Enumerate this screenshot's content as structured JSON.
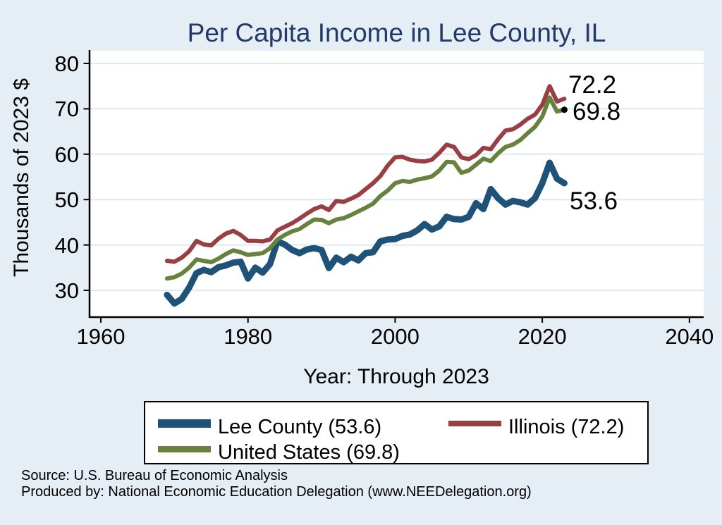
{
  "title": "Per Capita Income in Lee County, IL",
  "axes": {
    "y": {
      "label": "Thousands of 2023 $",
      "ticks": [
        "80",
        "70",
        "60",
        "50",
        "40",
        "30"
      ]
    },
    "x": {
      "label": "Year: Through 2023",
      "ticks": [
        "1960",
        "1980",
        "2000",
        "2020",
        "2040"
      ]
    }
  },
  "end_labels": {
    "illinois": "72.2",
    "united_states": "69.8",
    "lee_county": "53.6"
  },
  "legend": {
    "items": [
      {
        "label": "Lee County (53.6)",
        "color": "#1f5278"
      },
      {
        "label": "United States (69.8)",
        "color": "#66823c"
      },
      {
        "label": "Illinois (72.2)",
        "color": "#993f44"
      }
    ]
  },
  "footer": {
    "line1": "Source: U.S. Bureau of Economic Analysis",
    "line2": "Produced by: National Economic Education Delegation (www.NEEDelegation.org)"
  },
  "colors": {
    "background": "#e5eef5",
    "plot_background": "#ffffff",
    "gridline": "#dfe9f2",
    "axis": "#000000",
    "title": "#213a68",
    "lee_county": "#1f5278",
    "illinois": "#993f44",
    "united_states": "#66823c"
  },
  "chart_data": {
    "type": "line",
    "title": "Per Capita Income in Lee County, IL",
    "xlabel": "Year: Through 2023",
    "ylabel": "Thousands of 2023 $",
    "xlim": [
      1958.5,
      2042
    ],
    "ylim": [
      24.2,
      82.8
    ],
    "grid": true,
    "legend_position": "bottom",
    "xticks": [
      1960,
      1980,
      2000,
      2020,
      2040
    ],
    "yticks": [
      30,
      40,
      50,
      60,
      70,
      80
    ],
    "x": [
      1969,
      1970,
      1971,
      1972,
      1973,
      1974,
      1975,
      1976,
      1977,
      1978,
      1979,
      1980,
      1981,
      1982,
      1983,
      1984,
      1985,
      1986,
      1987,
      1988,
      1989,
      1990,
      1991,
      1992,
      1993,
      1994,
      1995,
      1996,
      1997,
      1998,
      1999,
      2000,
      2001,
      2002,
      2003,
      2004,
      2005,
      2006,
      2007,
      2008,
      2009,
      2010,
      2011,
      2012,
      2013,
      2014,
      2015,
      2016,
      2017,
      2018,
      2019,
      2020,
      2021,
      2022,
      2023
    ],
    "series": [
      {
        "name": "Lee County",
        "final_value": 53.6,
        "color": "#1f5278",
        "values": [
          29.0,
          27.1,
          28.1,
          30.6,
          33.8,
          34.5,
          34.0,
          35.1,
          35.5,
          36.1,
          36.3,
          32.6,
          35.0,
          33.9,
          35.8,
          40.8,
          40.1,
          38.9,
          38.2,
          39.0,
          39.3,
          38.9,
          34.9,
          37.2,
          36.2,
          37.4,
          36.6,
          38.2,
          38.4,
          40.8,
          41.2,
          41.3,
          42.0,
          42.3,
          43.2,
          44.6,
          43.4,
          44.1,
          46.2,
          45.7,
          45.6,
          46.2,
          49.2,
          47.9,
          52.3,
          50.3,
          48.9,
          49.7,
          49.4,
          48.9,
          50.3,
          53.6,
          58.1,
          54.6,
          53.6
        ]
      },
      {
        "name": "Illinois",
        "final_value": 72.2,
        "color": "#993f44",
        "values": [
          36.5,
          36.3,
          37.2,
          38.6,
          40.9,
          40.1,
          39.9,
          41.4,
          42.5,
          43.1,
          42.2,
          40.9,
          40.9,
          40.8,
          41.2,
          43.2,
          44.0,
          44.8,
          45.8,
          46.9,
          47.9,
          48.5,
          47.7,
          49.7,
          49.5,
          50.2,
          51.0,
          52.3,
          53.6,
          55.2,
          57.5,
          59.3,
          59.4,
          58.8,
          58.5,
          58.4,
          58.8,
          60.3,
          62.1,
          61.6,
          59.3,
          58.9,
          59.8,
          61.4,
          61.1,
          63.3,
          65.2,
          65.5,
          66.5,
          67.8,
          68.7,
          70.9,
          75.0,
          71.6,
          72.2
        ]
      },
      {
        "name": "United States",
        "final_value": 69.8,
        "color": "#66823c",
        "values": [
          32.6,
          32.9,
          33.7,
          35.0,
          36.8,
          36.5,
          36.2,
          37.0,
          38.0,
          38.8,
          38.4,
          37.8,
          38.0,
          38.2,
          39.3,
          41.2,
          42.2,
          43.0,
          43.5,
          44.6,
          45.6,
          45.5,
          44.8,
          45.6,
          45.9,
          46.6,
          47.4,
          48.2,
          49.1,
          50.8,
          52.0,
          53.6,
          54.1,
          53.9,
          54.4,
          54.7,
          55.1,
          56.4,
          58.3,
          58.2,
          55.9,
          56.4,
          57.7,
          59.0,
          58.5,
          60.2,
          61.6,
          62.1,
          63.1,
          64.6,
          66.0,
          68.3,
          72.5,
          69.4,
          69.8
        ]
      }
    ],
    "end_marker": {
      "year": 2023,
      "value": 69.8
    }
  }
}
